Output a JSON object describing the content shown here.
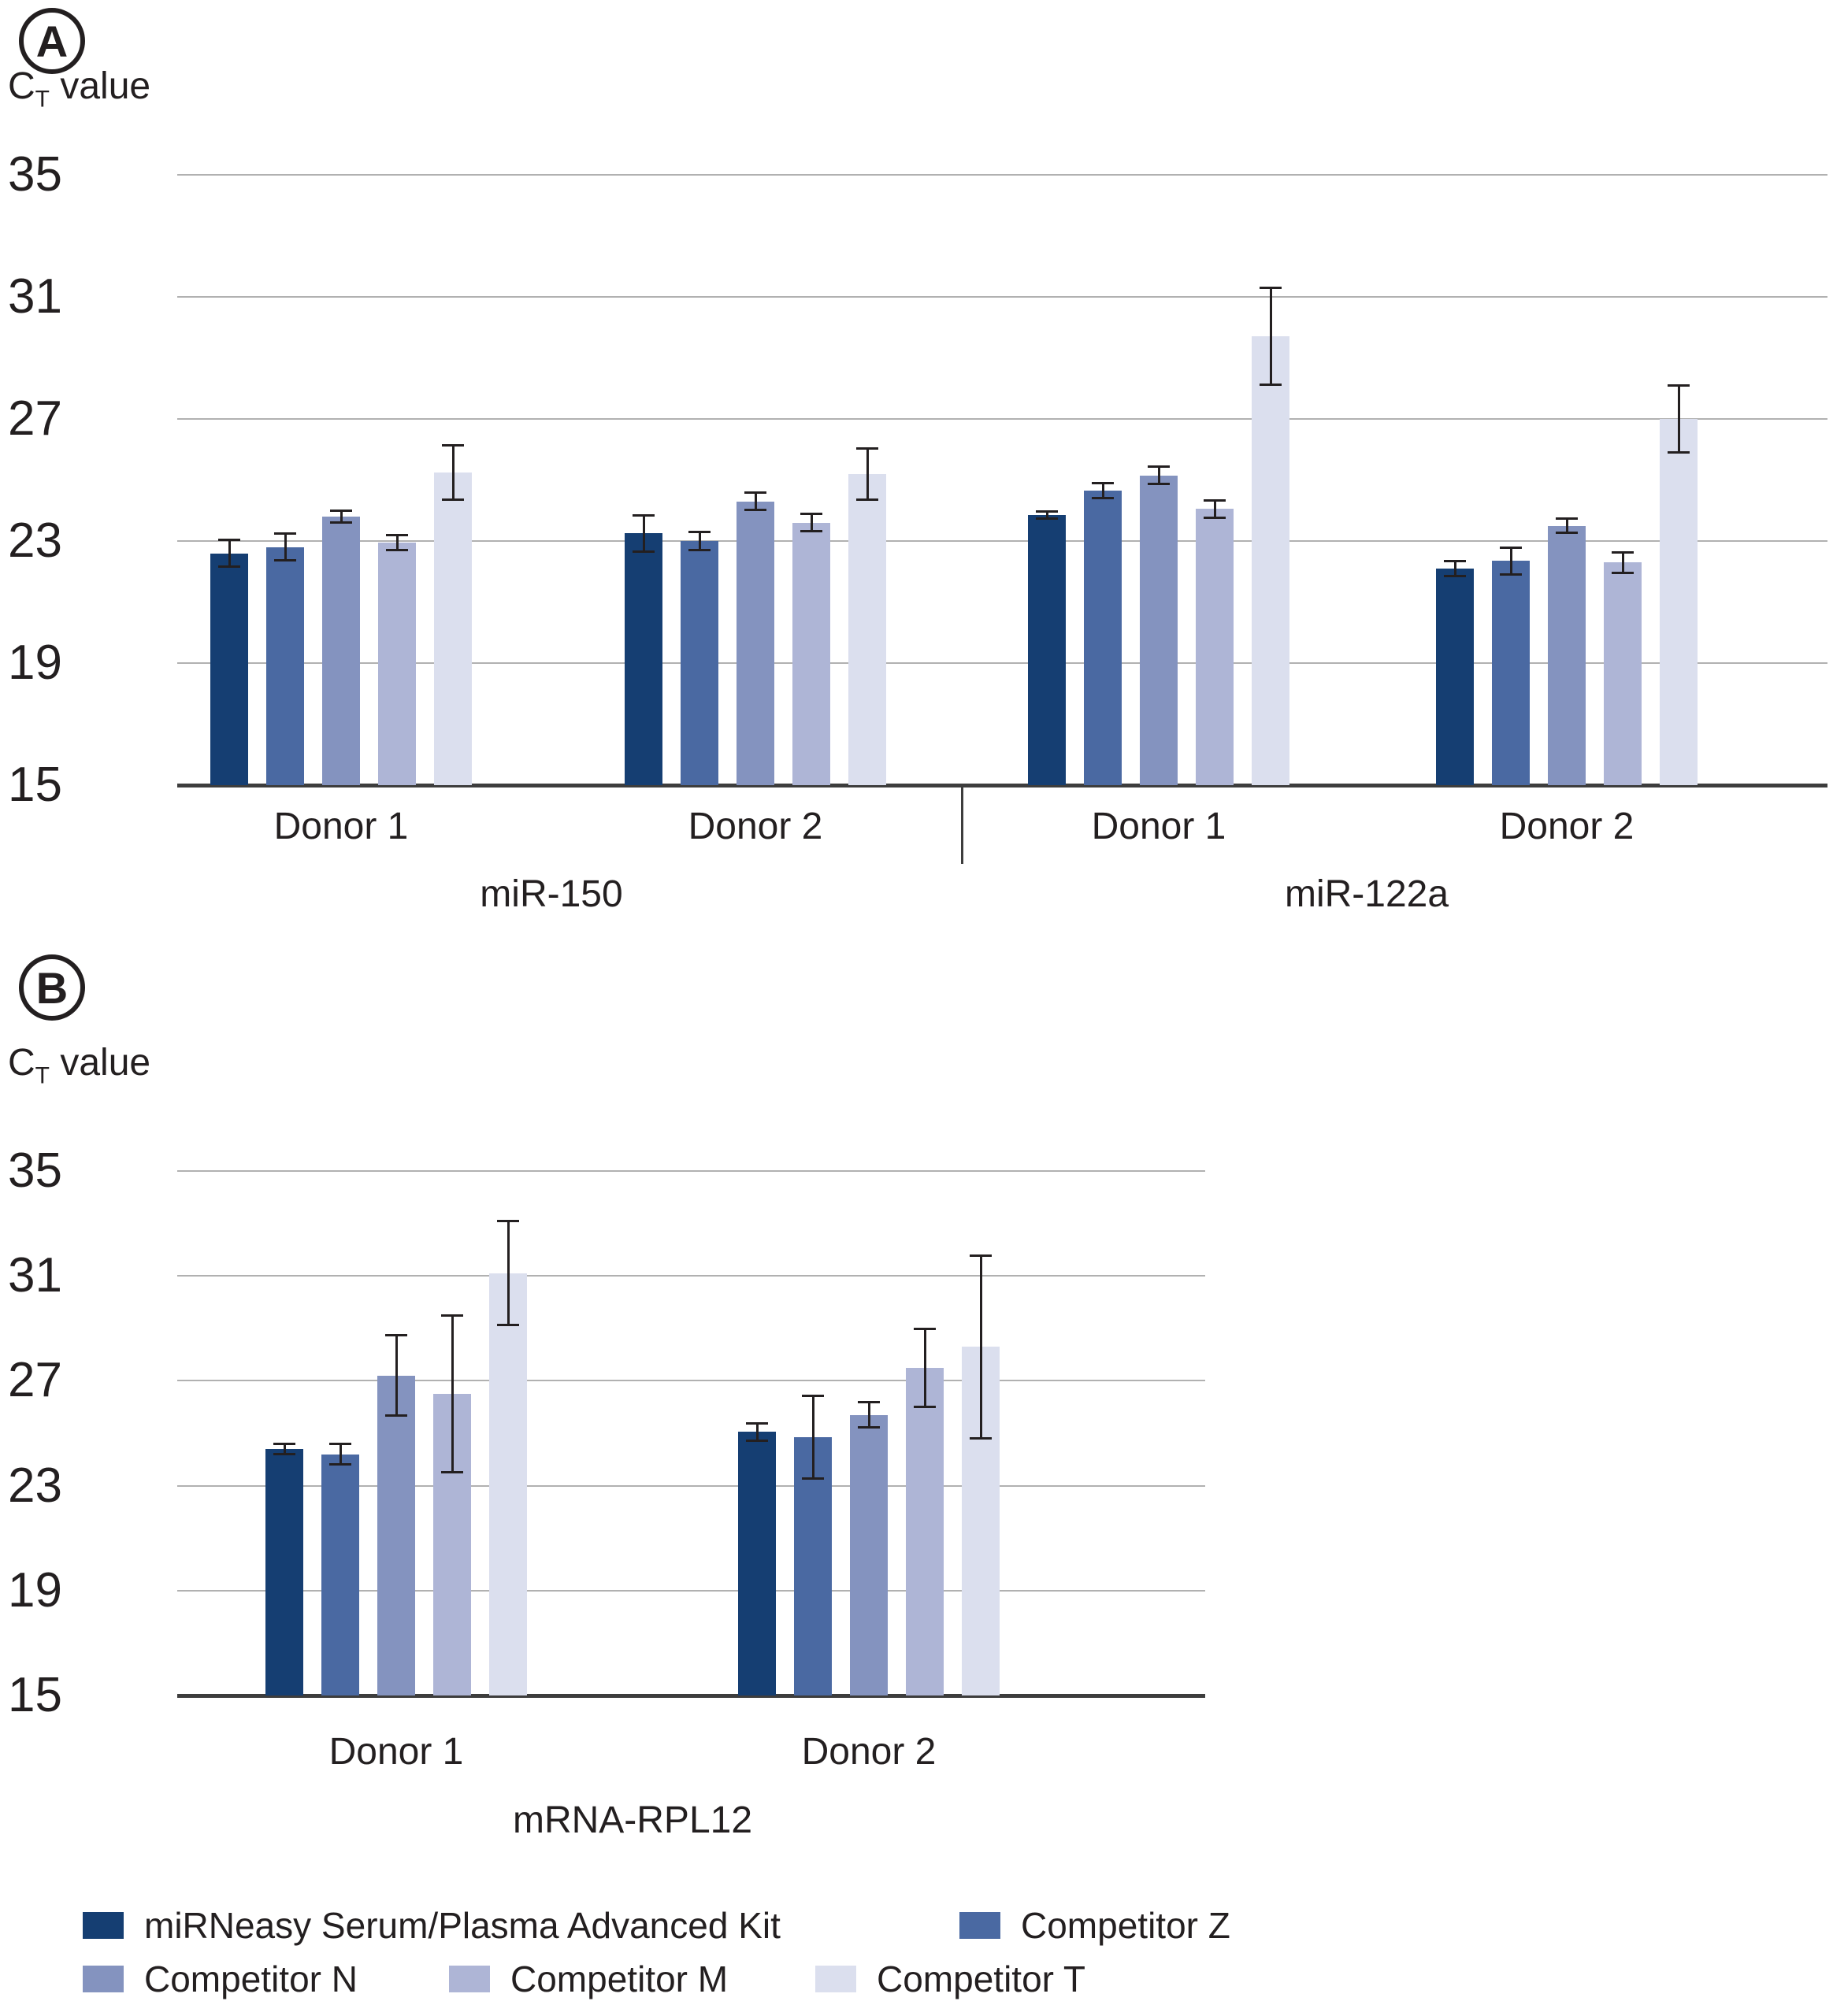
{
  "figure": {
    "panel_a_label": "A",
    "panel_b_label": "B",
    "y_axis_label_c": "C",
    "y_axis_label_sub": "T",
    "y_axis_label_rest": " value"
  },
  "colors": {
    "series": [
      "#153e72",
      "#4a69a2",
      "#8493bf",
      "#aeb5d6",
      "#dbdfee"
    ],
    "axis": "#3d3d3d",
    "gridline": "#b1b1b1",
    "text": "#231f20",
    "error_bar": "#231f20"
  },
  "legend": {
    "rows": [
      [
        {
          "label": "miRNeasy Serum/Plasma Advanced Kit",
          "series": 0
        },
        {
          "label": "Competitor Z",
          "series": 1
        }
      ],
      [
        {
          "label": "Competitor N",
          "series": 2
        },
        {
          "label": "Competitor M",
          "series": 3
        },
        {
          "label": "Competitor T",
          "series": 4
        }
      ]
    ]
  },
  "chart_data": [
    {
      "type": "bar",
      "panel_label": "A",
      "ylabel": "CT value",
      "ylim": [
        15,
        35
      ],
      "yticks": [
        35,
        31,
        27,
        23,
        19,
        15
      ],
      "grid": true,
      "legend_position": "bottom",
      "series": [
        "miRNeasy Serum/Plasma Advanced Kit",
        "Competitor Z",
        "Competitor N",
        "Competitor M",
        "Competitor T"
      ],
      "assays": [
        {
          "name": "miR-150",
          "groups": [
            {
              "donor": "Donor 1",
              "values": [
                22.6,
                22.8,
                23.8,
                22.95,
                25.25
              ],
              "errors": [
                0.45,
                0.45,
                0.2,
                0.25,
                0.9
              ]
            },
            {
              "donor": "Donor 2",
              "values": [
                23.25,
                23.0,
                24.3,
                23.6,
                25.2
              ],
              "errors": [
                0.6,
                0.3,
                0.3,
                0.3,
                0.85
              ]
            }
          ]
        },
        {
          "name": "miR-122a",
          "groups": [
            {
              "donor": "Donor 1",
              "values": [
                23.85,
                24.65,
                25.15,
                24.05,
                29.7
              ],
              "errors": [
                0.12,
                0.25,
                0.3,
                0.3,
                1.6
              ]
            },
            {
              "donor": "Donor 2",
              "values": [
                22.1,
                22.35,
                23.5,
                22.3,
                27.0
              ],
              "errors": [
                0.25,
                0.45,
                0.25,
                0.35,
                1.1
              ]
            }
          ]
        }
      ]
    },
    {
      "type": "bar",
      "panel_label": "B",
      "ylabel": "CT value",
      "ylim": [
        15,
        35
      ],
      "yticks": [
        35,
        31,
        27,
        23,
        19,
        15
      ],
      "grid": true,
      "legend_position": "bottom",
      "series": [
        "miRNeasy Serum/Plasma Advanced Kit",
        "Competitor Z",
        "Competitor N",
        "Competitor M",
        "Competitor T"
      ],
      "assays": [
        {
          "name": "mRNA-RPL12",
          "groups": [
            {
              "donor": "Donor 1",
              "values": [
                24.4,
                24.2,
                27.2,
                26.5,
                31.1
              ],
              "errors": [
                0.2,
                0.4,
                1.55,
                3.0,
                2.0
              ]
            },
            {
              "donor": "Donor 2",
              "values": [
                25.05,
                24.85,
                25.7,
                27.5,
                28.3
              ],
              "errors": [
                0.35,
                1.6,
                0.5,
                1.5,
                3.5
              ]
            }
          ]
        }
      ]
    }
  ]
}
